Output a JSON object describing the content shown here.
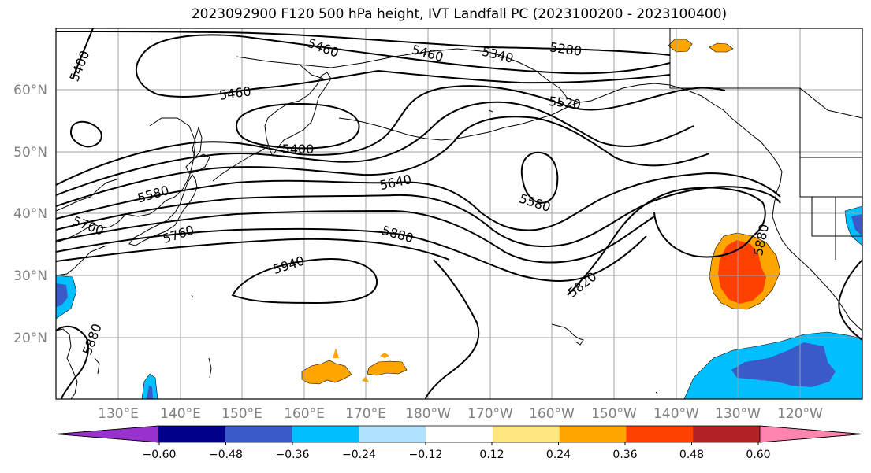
{
  "title": "2023092900 F120 500 hPa height, IVT Landfall PC (2023100200 - 2023100400)",
  "lat_labels": [
    "60°N",
    "50°N",
    "40°N",
    "30°N",
    "20°N"
  ],
  "lon_labels": [
    "130°E",
    "140°E",
    "150°E",
    "160°E",
    "170°E",
    "180°W",
    "170°W",
    "160°W",
    "150°W",
    "140°W",
    "130°W",
    "120°W"
  ],
  "contour_labels": [
    "5400",
    "5460",
    "5460",
    "5340",
    "5280",
    "5460",
    "5520",
    "5400",
    "5580",
    "5640",
    "5580",
    "5700",
    "5760",
    "5880",
    "5940",
    "5820",
    "5880",
    "5880"
  ],
  "colorbar": {
    "tick_labels": [
      "−0.60",
      "−0.48",
      "−0.36",
      "−0.24",
      "−0.12",
      "0.12",
      "0.24",
      "0.36",
      "0.48",
      "0.60"
    ],
    "colors": [
      "#9932cc",
      "#00008b",
      "#3a5bc7",
      "#00bfff",
      "#b0e2ff",
      "#ffffff",
      "#ffe680",
      "#ffa500",
      "#ff4000",
      "#b22222",
      "#ff85b0"
    ]
  }
}
